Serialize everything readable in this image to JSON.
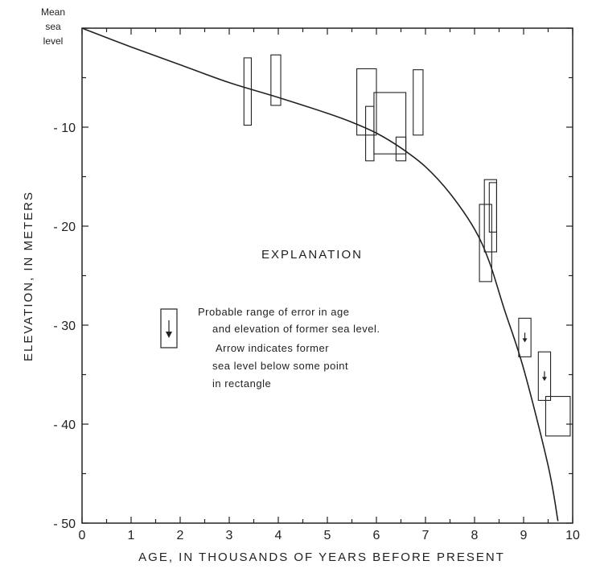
{
  "chart_data": {
    "type": "scatter",
    "title": "",
    "xlabel": "AGE, IN THOUSANDS OF YEARS BEFORE PRESENT",
    "ylabel": "ELEVATION, IN METERS",
    "xlim": [
      0,
      10
    ],
    "ylim": [
      -50,
      0
    ],
    "x_ticks": [
      0,
      1,
      2,
      3,
      4,
      5,
      6,
      7,
      8,
      9,
      10
    ],
    "y_ticks": [
      -10,
      -20,
      -30,
      -40,
      -50
    ],
    "y_top_label": [
      "Mean",
      "sea",
      "level"
    ],
    "grid": false,
    "error_boxes": [
      {
        "x": [
          3.3,
          3.45
        ],
        "y": [
          -9.8,
          -3.0
        ],
        "arrow": false
      },
      {
        "x": [
          3.85,
          4.05
        ],
        "y": [
          -7.8,
          -2.7
        ],
        "arrow": false
      },
      {
        "x": [
          5.6,
          6.0
        ],
        "y": [
          -10.8,
          -4.1
        ],
        "arrow": false
      },
      {
        "x": [
          5.78,
          5.95
        ],
        "y": [
          -13.4,
          -7.9
        ],
        "arrow": false
      },
      {
        "x": [
          5.95,
          6.6
        ],
        "y": [
          -12.7,
          -6.5
        ],
        "arrow": false
      },
      {
        "x": [
          6.4,
          6.6
        ],
        "y": [
          -13.4,
          -11.0
        ],
        "arrow": false
      },
      {
        "x": [
          6.75,
          6.95
        ],
        "y": [
          -10.8,
          -4.2
        ],
        "arrow": false
      },
      {
        "x": [
          8.1,
          8.35
        ],
        "y": [
          -25.6,
          -17.8
        ],
        "arrow": false
      },
      {
        "x": [
          8.2,
          8.45
        ],
        "y": [
          -22.6,
          -15.3
        ],
        "arrow": false
      },
      {
        "x": [
          8.3,
          8.45
        ],
        "y": [
          -20.6,
          -15.6
        ],
        "arrow": false
      },
      {
        "x": [
          8.9,
          9.15
        ],
        "y": [
          -33.2,
          -29.3
        ],
        "arrow": true
      },
      {
        "x": [
          9.3,
          9.55
        ],
        "y": [
          -37.6,
          -32.7
        ],
        "arrow": true
      },
      {
        "x": [
          9.45,
          9.95
        ],
        "y": [
          -41.2,
          -37.2
        ],
        "arrow": false
      }
    ],
    "curve": {
      "name": "",
      "x": [
        0,
        1,
        2,
        3,
        4,
        5,
        5.5,
        6,
        6.5,
        7,
        7.5,
        8,
        8.3,
        8.6,
        9,
        9.5,
        9.7
      ],
      "y": [
        0,
        -1.9,
        -3.7,
        -5.5,
        -7.0,
        -8.6,
        -9.5,
        -10.6,
        -12.1,
        -14.0,
        -16.7,
        -20.3,
        -23.6,
        -28.3,
        -34.4,
        -44.2,
        -49.8
      ]
    },
    "explanation": {
      "title": "EXPLANATION",
      "lines": [
        "Probable range of error in age",
        "and elevation of former sea level.",
        "Arrow indicates former",
        "sea level below  some point",
        "in rectangle"
      ]
    }
  }
}
